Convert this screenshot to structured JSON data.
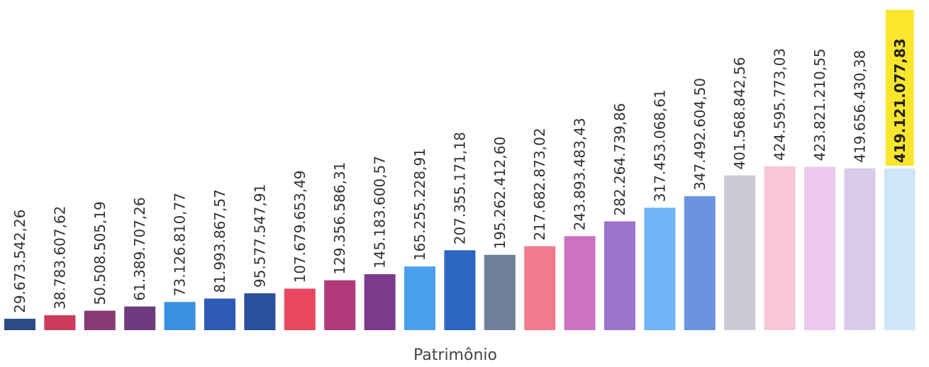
{
  "chart_data": {
    "type": "bar",
    "title": "",
    "xlabel": "Patrimônio",
    "ylabel": "",
    "grid": false,
    "ylim": [
      0,
      430000000
    ],
    "values": [
      29673542.26,
      38783607.62,
      50508505.19,
      61389707.26,
      73126810.77,
      81993867.57,
      95577547.91,
      107679653.49,
      129356586.31,
      145183600.57,
      165255228.91,
      207355171.18,
      195262412.6,
      217682873.02,
      243893483.43,
      282264739.86,
      317453068.61,
      347492604.5,
      401568842.56,
      424595773.03,
      423821210.55,
      419656430.38,
      419121077.83
    ],
    "value_labels": [
      "29.673.542,26",
      "38.783.607,62",
      "50.508.505,19",
      "61.389.707,26",
      "73.126.810,77",
      "81.993.867,57",
      "95.577.547,91",
      "107.679.653,49",
      "129.356.586,31",
      "145.183.600,57",
      "165.255.228,91",
      "207.355.171,18",
      "195.262.412,60",
      "217.682.873,02",
      "243.893.483,43",
      "282.264.739,86",
      "317.453.068,61",
      "347.492.604,50",
      "401.568.842,56",
      "424.595.773,03",
      "423.821.210,55",
      "419.656.430,38",
      "419.121.077,83"
    ],
    "highlighted_index": 22,
    "highlight_color": "#fbe62e",
    "bar_colors": [
      "#2c4a86",
      "#cc3a5c",
      "#8a3a73",
      "#6e3a7e",
      "#3a8fe0",
      "#2c5ab4",
      "#2a4f9c",
      "#e8475f",
      "#b03a7a",
      "#7b3a8c",
      "#4aa0ec",
      "#2e66c4",
      "#6f7f97",
      "#f27a8e",
      "#cc72c0",
      "#9b74cc",
      "#6fb4f4",
      "#6a93e0",
      "#cbcbd8",
      "#f7c7d7",
      "#ecc7ee",
      "#d8cbec",
      "#cde6f9"
    ]
  }
}
